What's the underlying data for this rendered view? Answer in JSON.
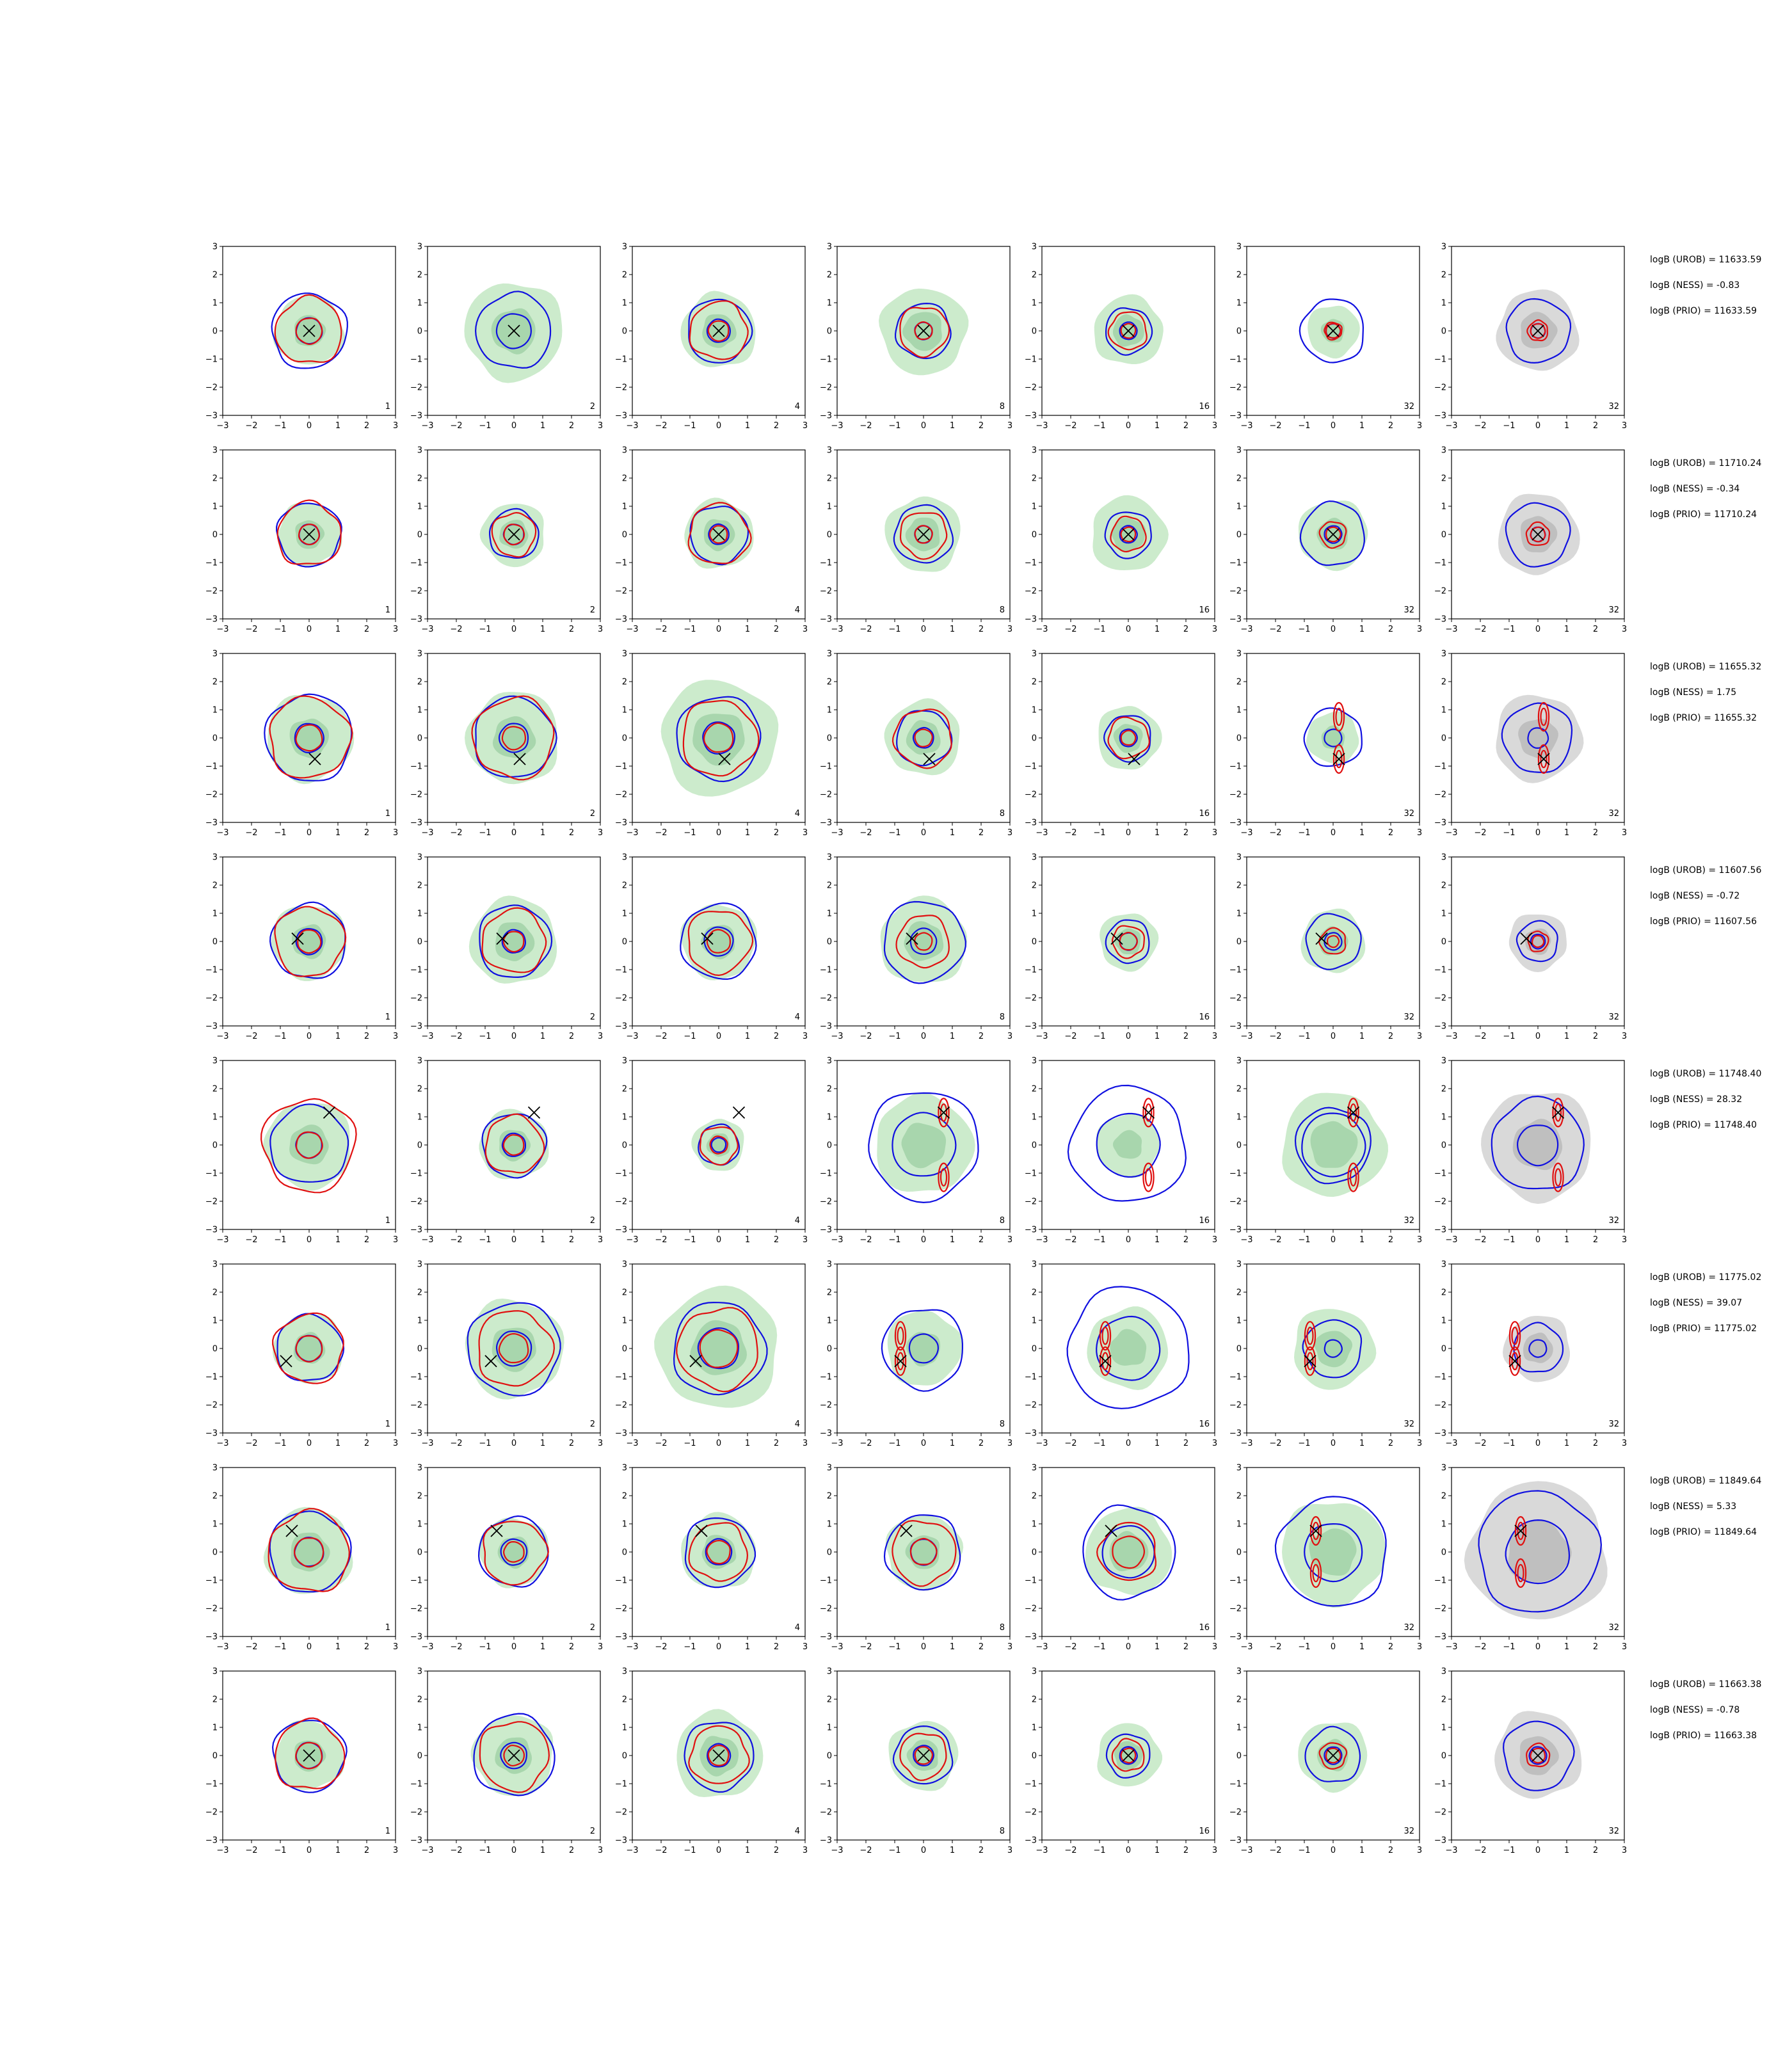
{
  "chart_data": {
    "type": "grid_contour",
    "layout": {
      "rows": 8,
      "cols": 7
    },
    "axes": {
      "xlim": [
        -3,
        3
      ],
      "ylim": [
        -3,
        3
      ],
      "ticks": [
        -3,
        -2,
        -1,
        0,
        1,
        2,
        3
      ],
      "grid": false
    },
    "tick_labels": [
      "−3",
      "−2",
      "−1",
      "0",
      "1",
      "2",
      "3"
    ],
    "column_samples": [
      "1",
      "2",
      "4",
      "8",
      "16",
      "32",
      "32"
    ],
    "series_colors": {
      "fill": "#ccebcc",
      "fill_dark": "#a8d6ad",
      "fill_last": "#d9d9d9",
      "fill_last_dark": "#bfbfbf",
      "blue": "#1010e0",
      "red": "#e01010",
      "marker": "#000000"
    },
    "rows": [
      {
        "marker": [
          0,
          0
        ],
        "labels": [
          "logB (UROB) = 11633.59",
          "logB (NESS) = -0.83",
          "logB (PRIO) = 11633.59"
        ],
        "panels": [
          {
            "fill": 1.2,
            "blue": [
              0.45,
              1.3
            ],
            "red": [
              0.45,
              1.15
            ]
          },
          {
            "fill": 1.7,
            "blue": [
              0.6,
              1.3
            ],
            "red": []
          },
          {
            "fill": 1.3,
            "blue": [
              0.4,
              1.1
            ],
            "red": [
              0.35,
              1.0
            ]
          },
          {
            "fill": 1.5,
            "blue": [
              0.3,
              0.95
            ],
            "red": [
              0.3,
              0.85
            ]
          },
          {
            "fill": 1.2,
            "blue": [
              0.3,
              0.8
            ],
            "red": [
              0.25,
              0.65
            ]
          },
          {
            "fill": 0.9,
            "blue": [
              0.25,
              1.1
            ],
            "red": [
              0.25,
              0.3
            ]
          },
          {
            "fill": 0,
            "blue": [
              0.25,
              1.1
            ],
            "red": [
              0.25,
              0.35
            ]
          }
        ]
      },
      {
        "marker": [
          0,
          0
        ],
        "labels": [
          "logB (UROB) = 11710.24",
          "logB (NESS) = -0.34",
          "logB (PRIO) = 11710.24"
        ],
        "panels": [
          {
            "fill": 1.1,
            "blue": [
              0.35,
              1.1
            ],
            "red": [
              0.35,
              1.1
            ]
          },
          {
            "fill": 1.1,
            "blue": [
              0.35,
              0.85
            ],
            "red": [
              0.35,
              0.75
            ]
          },
          {
            "fill": 1.2,
            "blue": [
              0.35,
              1.0
            ],
            "red": [
              0.3,
              1.05
            ]
          },
          {
            "fill": 1.3,
            "blue": [
              0.3,
              1.0
            ],
            "red": [
              0.3,
              0.8
            ]
          },
          {
            "fill": 1.3,
            "blue": [
              0.3,
              0.8
            ],
            "red": [
              0.25,
              0.6
            ]
          },
          {
            "fill": 1.2,
            "blue": [
              0.3,
              1.1
            ],
            "red": [
              0.25,
              0.45
            ]
          },
          {
            "fill": 0,
            "blue": [
              0.25,
              1.1
            ],
            "red": [
              0.25,
              0.4
            ]
          }
        ]
      },
      {
        "marker": [
          0.2,
          -0.75
        ],
        "labels": [
          "logB (UROB) = 11655.32",
          "logB (NESS) = 1.75",
          "logB (PRIO) = 11655.32"
        ],
        "panels": [
          {
            "fill": 1.5,
            "blue": [
              0.5,
              1.5
            ],
            "red": [
              0.45,
              1.4
            ]
          },
          {
            "fill": 1.6,
            "blue": [
              0.5,
              1.4
            ],
            "red": [
              0.4,
              1.4
            ]
          },
          {
            "fill": 2.0,
            "blue": [
              0.55,
              1.45
            ],
            "red": [
              0.5,
              1.3
            ]
          },
          {
            "fill": 1.3,
            "blue": [
              0.35,
              0.95
            ],
            "red": [
              0.3,
              1.0
            ]
          },
          {
            "fill": 1.1,
            "blue": [
              0.3,
              0.8
            ],
            "red": [
              0.25,
              0.7
            ]
          },
          {
            "fill": 0.9,
            "blue": [
              0.3,
              1.0
            ],
            "red": [],
            "ell": true
          },
          {
            "fill": 0,
            "blue": [
              0.35,
              1.2
            ],
            "red": [],
            "ell": true
          }
        ]
      },
      {
        "marker": [
          -0.4,
          0.1
        ],
        "labels": [
          "logB (UROB) = 11607.56",
          "logB (NESS) = -0.72",
          "logB (PRIO) = 11607.56"
        ],
        "panels": [
          {
            "fill": 1.3,
            "blue": [
              0.45,
              1.3
            ],
            "red": [
              0.4,
              1.2
            ]
          },
          {
            "fill": 1.5,
            "blue": [
              0.4,
              1.25
            ],
            "red": [
              0.35,
              1.1
            ]
          },
          {
            "fill": 1.3,
            "blue": [
              0.5,
              1.3
            ],
            "red": [
              0.4,
              1.1
            ]
          },
          {
            "fill": 1.5,
            "blue": [
              0.45,
              1.4
            ],
            "red": [
              0.3,
              0.9
            ]
          },
          {
            "fill": 1.0,
            "blue": [
              0.3,
              0.75
            ],
            "red": [
              0.3,
              0.55
            ]
          },
          {
            "fill": 1.1,
            "blue": [
              0.3,
              0.95
            ],
            "red": [
              0.2,
              0.45
            ]
          },
          {
            "fill": 0,
            "blue": [
              0.25,
              0.7
            ],
            "red": [
              0.2,
              0.35
            ]
          }
        ]
      },
      {
        "marker": [
          0.7,
          1.15
        ],
        "labels": [
          "logB (UROB) = 11748.40",
          "logB (NESS) = 28.32",
          "logB (PRIO) = 11748.40"
        ],
        "panels": [
          {
            "fill": 1.5,
            "blue": [
              0.45,
              1.35
            ],
            "red": [
              0.45,
              1.6
            ]
          },
          {
            "fill": 1.2,
            "blue": [
              0.4,
              1.1
            ],
            "red": [
              0.35,
              1.0
            ]
          },
          {
            "fill": 0.9,
            "blue": [
              0.25,
              0.7
            ],
            "red": [
              0.3,
              0.65
            ]
          },
          {
            "fill": 1.7,
            "blue": [
              1.1,
              1.9
            ],
            "red": [],
            "ell": true
          },
          {
            "fill": 1.1,
            "blue": [
              1.1,
              2.0
            ],
            "red": [],
            "ell": true
          },
          {
            "fill": 1.8,
            "blue": [
              1.1,
              1.3
            ],
            "red": [],
            "ell": true
          },
          {
            "fill": 0,
            "blue": [
              0.7,
              1.6
            ],
            "red": [],
            "ell": true
          }
        ]
      },
      {
        "marker": [
          -0.8,
          -0.45
        ],
        "labels": [
          "logB (UROB) = 11775.02",
          "logB (NESS) = 39.07",
          "logB (PRIO) = 11775.02"
        ],
        "panels": [
          {
            "fill": 1.2,
            "blue": [
              0.45,
              1.15
            ],
            "red": [
              0.45,
              1.2
            ]
          },
          {
            "fill": 1.7,
            "blue": [
              0.6,
              1.6
            ],
            "red": [
              0.5,
              1.3
            ]
          },
          {
            "fill": 2.1,
            "blue": [
              0.7,
              1.6
            ],
            "red": [
              0.65,
              1.4
            ]
          },
          {
            "fill": 1.3,
            "blue": [
              0.5,
              1.4
            ],
            "red": [],
            "ell": true
          },
          {
            "fill": 1.4,
            "blue": [
              1.1,
              2.1
            ],
            "red": [],
            "ell": true
          },
          {
            "fill": 1.4,
            "blue": [
              0.3,
              1.0
            ],
            "red": [],
            "ell": true
          },
          {
            "fill": 0,
            "blue": [
              0.3,
              0.85
            ],
            "red": [],
            "ell": true
          }
        ]
      },
      {
        "marker": [
          -0.6,
          0.75
        ],
        "labels": [
          "logB (UROB) = 11849.64",
          "logB (NESS) = 5.33",
          "logB (PRIO) = 11849.64"
        ],
        "panels": [
          {
            "fill": 1.5,
            "blue": [
              0.5,
              1.4
            ],
            "red": [
              0.5,
              1.4
            ]
          },
          {
            "fill": 1.2,
            "blue": [
              0.45,
              1.2
            ],
            "red": [
              0.35,
              1.1
            ]
          },
          {
            "fill": 1.3,
            "blue": [
              0.45,
              1.2
            ],
            "red": [
              0.4,
              1.0
            ]
          },
          {
            "fill": 1.3,
            "blue": [
              0.45,
              1.3
            ],
            "red": [
              0.45,
              1.1
            ]
          },
          {
            "fill": 1.5,
            "blue": [
              0.9,
              1.6
            ],
            "red": [
              0.55,
              1.0
            ]
          },
          {
            "fill": 1.8,
            "blue": [
              1.0,
              1.9
            ],
            "red": [],
            "ell": true
          },
          {
            "fill": 0,
            "blue": [
              1.1,
              2.1
            ],
            "red": [],
            "ell": true
          }
        ]
      },
      {
        "marker": [
          0,
          0
        ],
        "labels": [
          "logB (UROB) = 11663.38",
          "logB (NESS) = -0.78",
          "logB (PRIO) = 11663.38"
        ],
        "panels": [
          {
            "fill": 1.2,
            "blue": [
              0.45,
              1.25
            ],
            "red": [
              0.45,
              1.2
            ]
          },
          {
            "fill": 1.4,
            "blue": [
              0.45,
              1.4
            ],
            "red": [
              0.35,
              1.2
            ]
          },
          {
            "fill": 1.5,
            "blue": [
              0.4,
              1.2
            ],
            "red": [
              0.35,
              1.0
            ]
          },
          {
            "fill": 1.2,
            "blue": [
              0.35,
              1.0
            ],
            "red": [
              0.3,
              0.8
            ]
          },
          {
            "fill": 1.1,
            "blue": [
              0.3,
              0.75
            ],
            "red": [
              0.25,
              0.55
            ]
          },
          {
            "fill": 1.2,
            "blue": [
              0.3,
              0.95
            ],
            "red": [
              0.25,
              0.45
            ]
          },
          {
            "fill": 0,
            "blue": [
              0.3,
              1.2
            ],
            "red": [
              0.25,
              0.4
            ]
          }
        ]
      }
    ]
  }
}
